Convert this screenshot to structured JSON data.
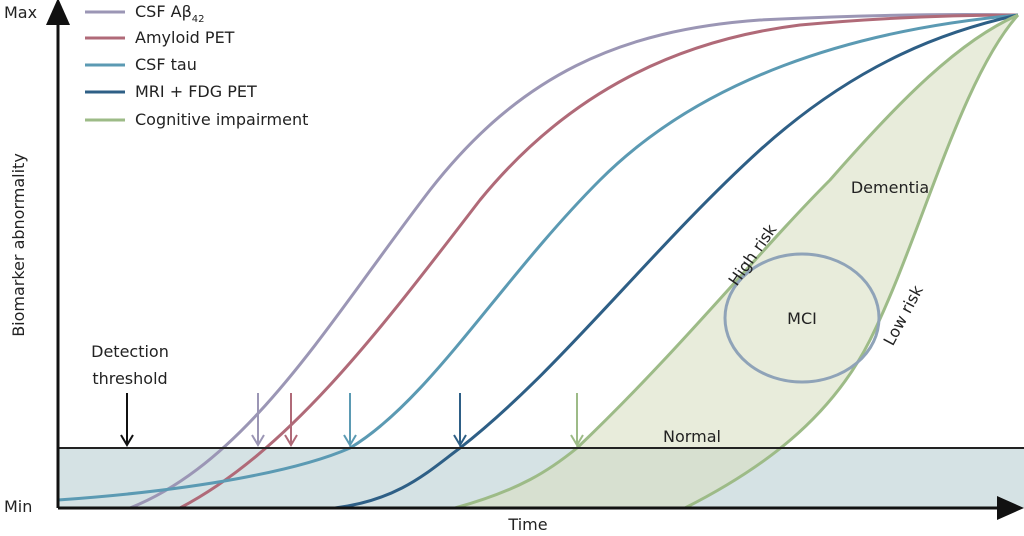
{
  "axes": {
    "y_max": "Max",
    "y_min": "Min",
    "y_label": "Biomarker abnormality",
    "x_label": "Time"
  },
  "legend": [
    {
      "label": "CSF Aβ",
      "subscript": "42"
    },
    {
      "label": "Amyloid PET"
    },
    {
      "label": "CSF tau"
    },
    {
      "label": "MRI + FDG PET"
    },
    {
      "label": "Cognitive impairment"
    }
  ],
  "annotations": {
    "detection": [
      "Detection",
      "threshold"
    ],
    "dementia": "Dementia",
    "high_risk": "High risk",
    "low_risk": "Low risk",
    "mci": "MCI",
    "normal": "Normal"
  }
}
